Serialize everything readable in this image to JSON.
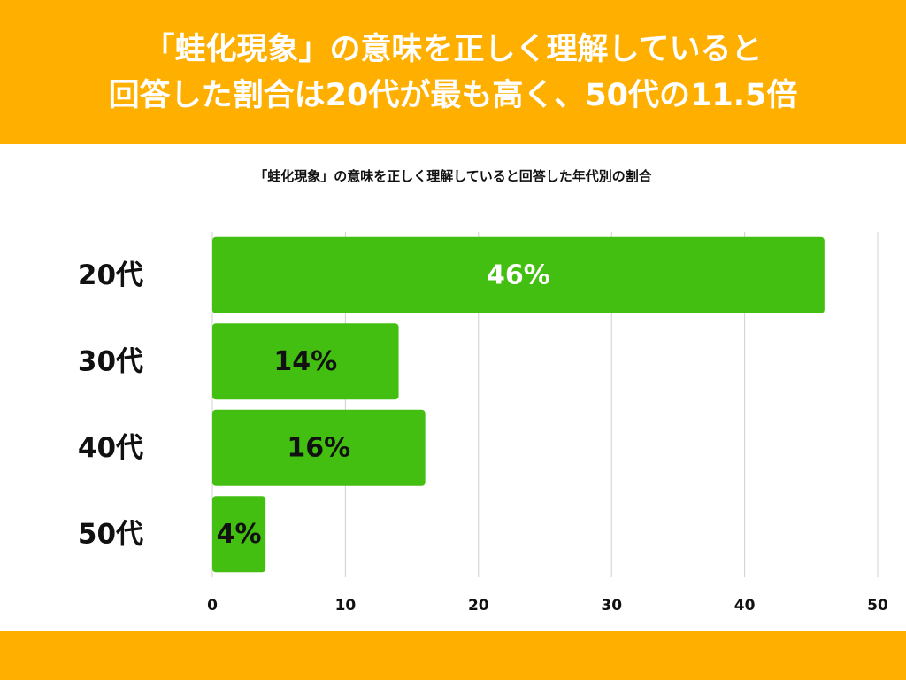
{
  "header": {
    "line1": "「蛙化現象」の意味を正しく理解していると",
    "line2": "回答した割合は20代が最も高く、50代の11.5倍"
  },
  "colors": {
    "header_band": "#FFAF00",
    "bar": "#43BF12",
    "grid": "#d0d0d0"
  },
  "chart_data": {
    "type": "bar",
    "orientation": "horizontal",
    "title": "「蛙化現象」の意味を正しく理解していると回答した年代別の割合",
    "categories": [
      "20代",
      "30代",
      "40代",
      "50代"
    ],
    "values": [
      46,
      14,
      16,
      4
    ],
    "data_labels": [
      "46%",
      "14%",
      "16%",
      "4%"
    ],
    "xlim": [
      0,
      50
    ],
    "xticks": [
      "0",
      "10",
      "20",
      "30",
      "40",
      "50"
    ],
    "grid": true,
    "legend": "none"
  }
}
